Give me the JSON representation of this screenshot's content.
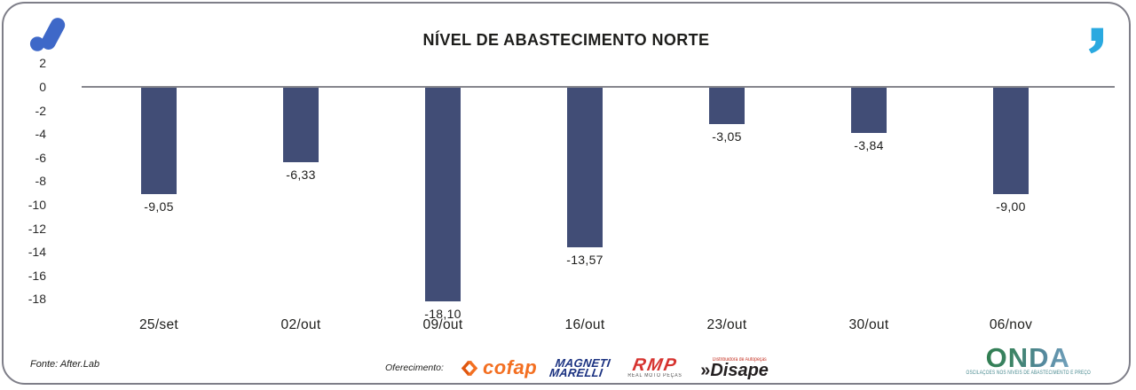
{
  "header": {
    "title": "NÍVEL DE ABASTECIMENTO NORTE"
  },
  "chart_data": {
    "type": "bar",
    "title": "NÍVEL DE ABASTECIMENTO NORTE",
    "categories": [
      "25/set",
      "02/out",
      "09/out",
      "16/out",
      "23/out",
      "30/out",
      "06/nov"
    ],
    "values": [
      -9.05,
      -6.33,
      -18.1,
      -13.57,
      -3.05,
      -3.84,
      -9.0
    ],
    "value_labels": [
      "-9,05",
      "-6,33",
      "-18,10",
      "-13,57",
      "-3,05",
      "-3,84",
      "-9,00"
    ],
    "yticks": [
      2,
      0,
      -2,
      -4,
      -6,
      -8,
      -10,
      -12,
      -14,
      -16,
      -18
    ],
    "ylim": [
      -19,
      2.5
    ],
    "xlabel": "",
    "ylabel": "",
    "grid": false,
    "zero_line": true,
    "legend_position": "none",
    "bar_color": "#414D76"
  },
  "footer": {
    "source": "Fonte: After.Lab",
    "sponsor_label": "Oferecimento:",
    "sponsors": {
      "cofap": "cofap",
      "magneti_line1": "MAGNETI",
      "magneti_line2": "MARELLI",
      "rmp": "RMP",
      "rmp_caption": "REAL MOTO PEÇAS",
      "disape_prefix": "»",
      "disape": "Disape",
      "disape_caption": "Distribuidora de Autopeças"
    },
    "onda": {
      "name": "ONDA",
      "caption": "OSCILAÇÕES NOS NÍVEIS DE ABASTECIMENTO E PREÇO"
    }
  },
  "colors": {
    "bar": "#414D76",
    "axis": "#85858D",
    "after_blue": "#3E68C8",
    "quote_cyan": "#29A9E0",
    "cofap_orange": "#F36F21",
    "magneti_blue": "#1B3281",
    "rmp_red": "#D6332F",
    "disape_dark": "#231F20",
    "onda_green": "#2F7D4F",
    "onda_blue": "#74A3BE"
  }
}
